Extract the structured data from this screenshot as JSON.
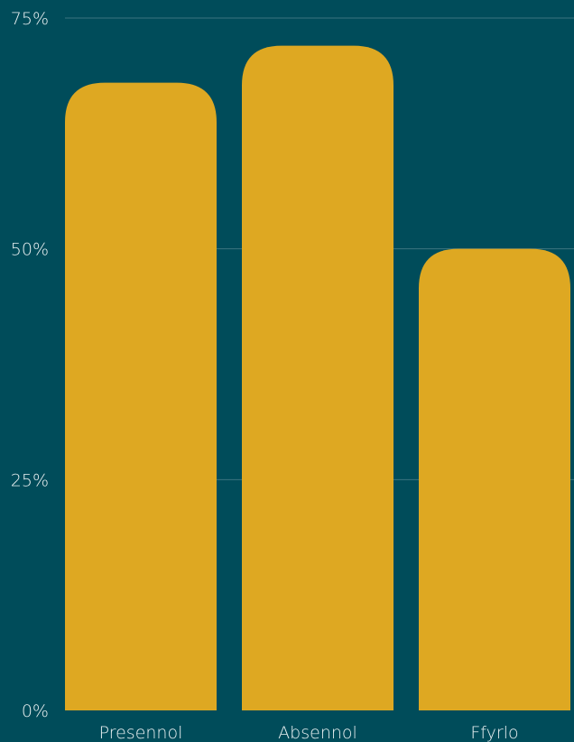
{
  "chart_data": {
    "type": "bar",
    "categories": [
      "Presennol",
      "Absennol",
      "Ffyrlo"
    ],
    "values": [
      68,
      72,
      50
    ],
    "y_ticks": [
      0,
      25,
      50,
      75
    ],
    "y_tick_labels": [
      "0%",
      "25%",
      "50%",
      "75%"
    ],
    "ylim": [
      0,
      75
    ],
    "unit": "%",
    "title": "",
    "xlabel": "",
    "ylabel": "",
    "grid": true,
    "legend": "none",
    "colors": {
      "background": "#004c5a",
      "bar": "#dea822",
      "grid": "#3c7480",
      "text": "#ffffff"
    }
  }
}
